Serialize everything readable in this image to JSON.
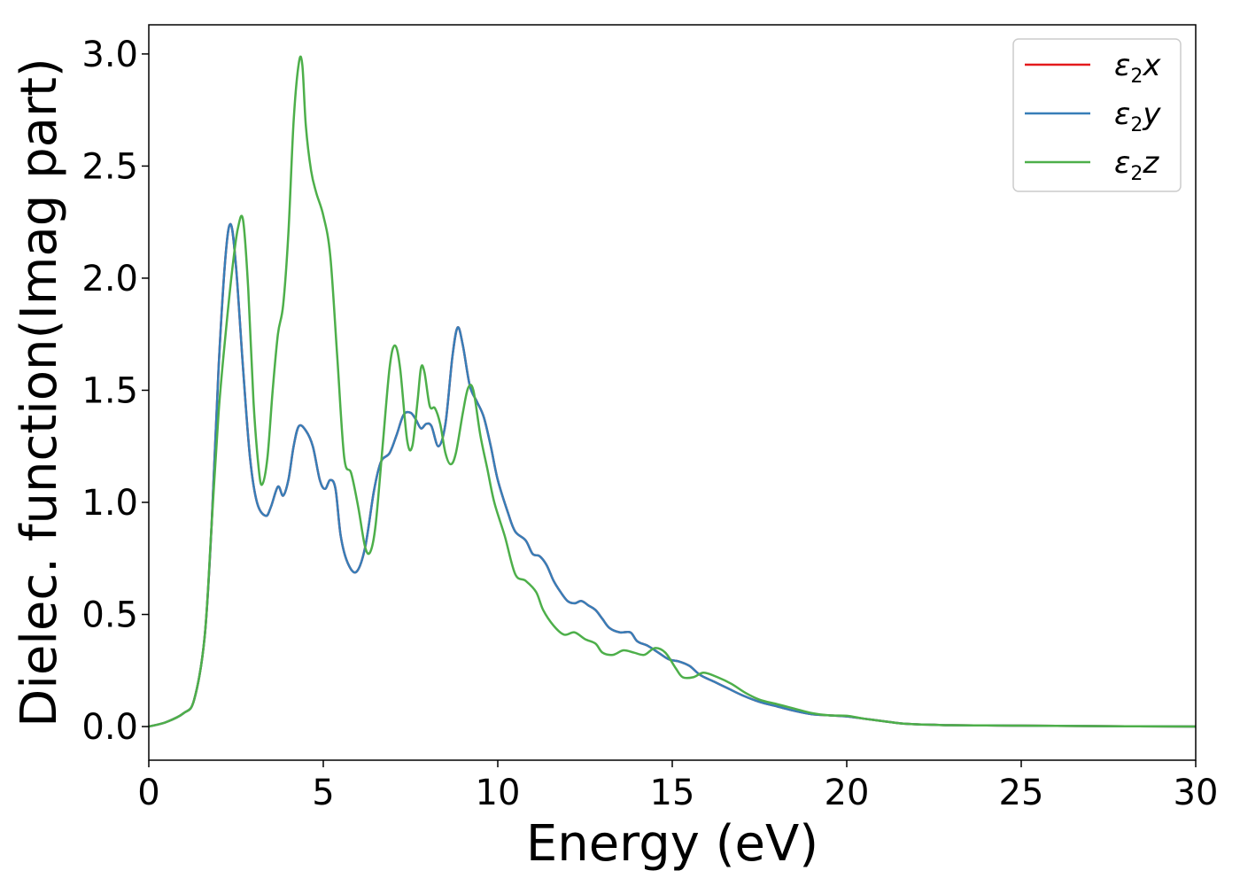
{
  "chart_data": {
    "type": "line",
    "xlabel": "Energy (eV)",
    "ylabel": "Dielec. function(Imag part)",
    "xlim": [
      0,
      30
    ],
    "ylim": [
      -0.15,
      3.13
    ],
    "xticks": [
      0,
      5,
      10,
      15,
      20,
      25,
      30
    ],
    "xtick_labels": [
      "0",
      "5",
      "10",
      "15",
      "20",
      "25",
      "30"
    ],
    "yticks": [
      0.0,
      0.5,
      1.0,
      1.5,
      2.0,
      2.5,
      3.0
    ],
    "ytick_labels": [
      "0.0",
      "0.5",
      "1.0",
      "1.5",
      "2.0",
      "2.5",
      "3.0"
    ],
    "grid": false,
    "legend_position": "top-right",
    "series": [
      {
        "name": "ε2x",
        "legend_main": "ε",
        "legend_sub": "2",
        "legend_var": "x",
        "color": "#e41a1c",
        "x": [
          0,
          0.5,
          1.0,
          1.3,
          1.6,
          1.8,
          2.0,
          2.2,
          2.35,
          2.5,
          2.7,
          2.9,
          3.1,
          3.35,
          3.5,
          3.7,
          3.85,
          4.0,
          4.15,
          4.3,
          4.5,
          4.7,
          4.9,
          5.05,
          5.2,
          5.35,
          5.5,
          5.7,
          5.95,
          6.2,
          6.45,
          6.65,
          6.9,
          7.1,
          7.3,
          7.5,
          7.65,
          7.8,
          7.95,
          8.1,
          8.3,
          8.5,
          8.7,
          8.85,
          9.0,
          9.2,
          9.4,
          9.6,
          9.8,
          10.0,
          10.3,
          10.5,
          10.8,
          11.0,
          11.2,
          11.4,
          11.6,
          11.8,
          12.0,
          12.2,
          12.4,
          12.6,
          12.8,
          13.0,
          13.2,
          13.5,
          13.8,
          14.0,
          14.3,
          14.6,
          14.9,
          15.2,
          15.5,
          15.8,
          16.2,
          16.6,
          17.0,
          17.5,
          18.0,
          18.5,
          19.0,
          19.5,
          20.0,
          20.5,
          21.0,
          21.5,
          22.0,
          22.5,
          23.0,
          24.0,
          25.0,
          27.0,
          30.0
        ],
        "y": [
          0.0,
          0.02,
          0.06,
          0.12,
          0.4,
          0.9,
          1.6,
          2.1,
          2.24,
          2.05,
          1.6,
          1.2,
          1.0,
          0.94,
          0.98,
          1.07,
          1.03,
          1.1,
          1.25,
          1.34,
          1.32,
          1.25,
          1.1,
          1.06,
          1.1,
          1.06,
          0.85,
          0.73,
          0.69,
          0.8,
          1.05,
          1.18,
          1.22,
          1.3,
          1.39,
          1.4,
          1.37,
          1.33,
          1.35,
          1.34,
          1.25,
          1.35,
          1.65,
          1.78,
          1.7,
          1.52,
          1.45,
          1.38,
          1.25,
          1.1,
          0.95,
          0.87,
          0.83,
          0.77,
          0.76,
          0.72,
          0.65,
          0.6,
          0.56,
          0.55,
          0.56,
          0.54,
          0.52,
          0.48,
          0.44,
          0.42,
          0.42,
          0.38,
          0.36,
          0.33,
          0.3,
          0.29,
          0.27,
          0.23,
          0.2,
          0.17,
          0.14,
          0.11,
          0.09,
          0.07,
          0.055,
          0.05,
          0.045,
          0.035,
          0.025,
          0.015,
          0.01,
          0.008,
          0.006,
          0.005,
          0.004,
          0.002,
          0.0
        ]
      },
      {
        "name": "ε2y",
        "legend_main": "ε",
        "legend_sub": "2",
        "legend_var": "y",
        "color": "#377eb8",
        "x": [
          0,
          0.5,
          1.0,
          1.3,
          1.6,
          1.8,
          2.0,
          2.2,
          2.35,
          2.5,
          2.7,
          2.9,
          3.1,
          3.35,
          3.5,
          3.7,
          3.85,
          4.0,
          4.15,
          4.3,
          4.5,
          4.7,
          4.9,
          5.05,
          5.2,
          5.35,
          5.5,
          5.7,
          5.95,
          6.2,
          6.45,
          6.65,
          6.9,
          7.1,
          7.3,
          7.5,
          7.65,
          7.8,
          7.95,
          8.1,
          8.3,
          8.5,
          8.7,
          8.85,
          9.0,
          9.2,
          9.4,
          9.6,
          9.8,
          10.0,
          10.3,
          10.5,
          10.8,
          11.0,
          11.2,
          11.4,
          11.6,
          11.8,
          12.0,
          12.2,
          12.4,
          12.6,
          12.8,
          13.0,
          13.2,
          13.5,
          13.8,
          14.0,
          14.3,
          14.6,
          14.9,
          15.2,
          15.5,
          15.8,
          16.2,
          16.6,
          17.0,
          17.5,
          18.0,
          18.5,
          19.0,
          19.5,
          20.0,
          20.5,
          21.0,
          21.5,
          22.0,
          22.5,
          23.0,
          24.0,
          25.0,
          27.0,
          30.0
        ],
        "y": [
          0.0,
          0.02,
          0.06,
          0.12,
          0.4,
          0.9,
          1.6,
          2.1,
          2.24,
          2.05,
          1.6,
          1.2,
          1.0,
          0.94,
          0.98,
          1.07,
          1.03,
          1.1,
          1.25,
          1.34,
          1.32,
          1.25,
          1.1,
          1.06,
          1.1,
          1.06,
          0.85,
          0.73,
          0.69,
          0.8,
          1.05,
          1.18,
          1.22,
          1.3,
          1.39,
          1.4,
          1.37,
          1.33,
          1.35,
          1.34,
          1.25,
          1.35,
          1.65,
          1.78,
          1.7,
          1.52,
          1.45,
          1.38,
          1.25,
          1.1,
          0.95,
          0.87,
          0.83,
          0.77,
          0.76,
          0.72,
          0.65,
          0.6,
          0.56,
          0.55,
          0.56,
          0.54,
          0.52,
          0.48,
          0.44,
          0.42,
          0.42,
          0.38,
          0.36,
          0.33,
          0.3,
          0.29,
          0.27,
          0.23,
          0.2,
          0.17,
          0.14,
          0.11,
          0.09,
          0.07,
          0.055,
          0.05,
          0.045,
          0.035,
          0.025,
          0.015,
          0.01,
          0.008,
          0.006,
          0.005,
          0.004,
          0.002,
          0.0
        ]
      },
      {
        "name": "ε2z",
        "legend_main": "ε",
        "legend_sub": "2",
        "legend_var": "z",
        "color": "#4daf4a",
        "x": [
          0,
          0.5,
          1.0,
          1.3,
          1.6,
          1.8,
          2.0,
          2.2,
          2.4,
          2.55,
          2.7,
          2.85,
          3.0,
          3.15,
          3.25,
          3.4,
          3.55,
          3.7,
          3.85,
          4.0,
          4.15,
          4.3,
          4.4,
          4.5,
          4.65,
          4.8,
          5.0,
          5.2,
          5.4,
          5.6,
          5.8,
          6.0,
          6.2,
          6.35,
          6.5,
          6.7,
          6.9,
          7.05,
          7.2,
          7.4,
          7.55,
          7.7,
          7.8,
          7.9,
          8.05,
          8.2,
          8.35,
          8.5,
          8.65,
          8.8,
          9.0,
          9.15,
          9.3,
          9.5,
          9.7,
          9.9,
          10.2,
          10.5,
          10.8,
          11.1,
          11.3,
          11.6,
          11.9,
          12.2,
          12.5,
          12.8,
          13.0,
          13.3,
          13.6,
          13.9,
          14.2,
          14.5,
          14.8,
          15.1,
          15.3,
          15.6,
          15.9,
          16.3,
          16.7,
          17.1,
          17.5,
          18.0,
          18.5,
          19.0,
          19.5,
          20.0,
          20.5,
          21.0,
          21.5,
          22.0,
          22.5,
          23.0,
          24.0,
          25.0,
          27.0,
          30.0
        ],
        "y": [
          0.0,
          0.02,
          0.06,
          0.12,
          0.4,
          0.9,
          1.4,
          1.75,
          2.05,
          2.22,
          2.26,
          1.95,
          1.45,
          1.15,
          1.08,
          1.2,
          1.5,
          1.75,
          1.88,
          2.2,
          2.7,
          2.96,
          2.95,
          2.68,
          2.48,
          2.38,
          2.28,
          2.1,
          1.65,
          1.2,
          1.13,
          0.98,
          0.8,
          0.78,
          0.9,
          1.25,
          1.6,
          1.7,
          1.6,
          1.28,
          1.25,
          1.45,
          1.6,
          1.58,
          1.43,
          1.42,
          1.35,
          1.22,
          1.17,
          1.22,
          1.4,
          1.51,
          1.5,
          1.3,
          1.15,
          1.0,
          0.85,
          0.68,
          0.65,
          0.6,
          0.52,
          0.45,
          0.41,
          0.42,
          0.39,
          0.37,
          0.33,
          0.32,
          0.34,
          0.33,
          0.32,
          0.35,
          0.33,
          0.26,
          0.22,
          0.22,
          0.24,
          0.22,
          0.19,
          0.15,
          0.12,
          0.1,
          0.08,
          0.06,
          0.05,
          0.048,
          0.035,
          0.025,
          0.015,
          0.01,
          0.008,
          0.006,
          0.005,
          0.004,
          0.002,
          0.0
        ]
      }
    ]
  }
}
